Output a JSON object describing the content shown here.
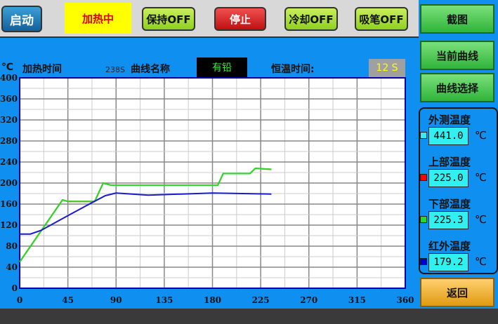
{
  "toolbar": {
    "start": "启动",
    "status": "加热中",
    "hold": "保持OFF",
    "stop": "停止",
    "cool": "冷却OFF",
    "suction": "吸笔OFF"
  },
  "side": {
    "screenshot": "截图",
    "current_curve": "当前曲线",
    "curve_select": "曲线选择",
    "back": "返回"
  },
  "header": {
    "unit": "℃",
    "heat_time_label": "加热时间",
    "heat_time": "238S",
    "curve_name_label": "曲线名称",
    "curve_name": "有铅",
    "hold_time_label": "恒温时间:",
    "hold_time": "12 S"
  },
  "temps": [
    {
      "label": "外测温度",
      "value": "441.0",
      "unit": "℃",
      "color": "#33f0f0"
    },
    {
      "label": "上部温度",
      "value": "225.0",
      "unit": "℃",
      "color": "#ff0000"
    },
    {
      "label": "下部温度",
      "value": "225.3",
      "unit": "℃",
      "color": "#22dd22"
    },
    {
      "label": "红外温度",
      "value": "179.2",
      "unit": "℃",
      "color": "#0000cc"
    }
  ],
  "chart_data": {
    "type": "line",
    "xlim": [
      0,
      360
    ],
    "ylim": [
      0,
      400
    ],
    "grid": true,
    "xticks": [
      "0",
      "45",
      "90",
      "135",
      "180",
      "225",
      "270",
      "315",
      "360"
    ],
    "yticks": [
      "0",
      "40",
      "80",
      "120",
      "160",
      "200",
      "240",
      "280",
      "320",
      "360",
      "400"
    ],
    "series": [
      {
        "color": "#cc2200",
        "x": [
          0,
          40,
          45,
          70,
          78,
          85,
          185,
          190,
          215,
          220,
          235
        ],
        "y": [
          50,
          168,
          165,
          165,
          200,
          196,
          196,
          218,
          218,
          228,
          226
        ]
      },
      {
        "color": "#22dd22",
        "x": [
          0,
          40,
          45,
          70,
          78,
          85,
          185,
          190,
          215,
          220,
          235
        ],
        "y": [
          50,
          168,
          165,
          165,
          200,
          196,
          196,
          218,
          218,
          228,
          226
        ]
      },
      {
        "color": "#1a1acc",
        "x": [
          0,
          10,
          20,
          45,
          65,
          80,
          90,
          120,
          180,
          235
        ],
        "y": [
          103,
          103,
          110,
          138,
          160,
          176,
          181,
          177,
          181,
          179
        ]
      }
    ]
  }
}
